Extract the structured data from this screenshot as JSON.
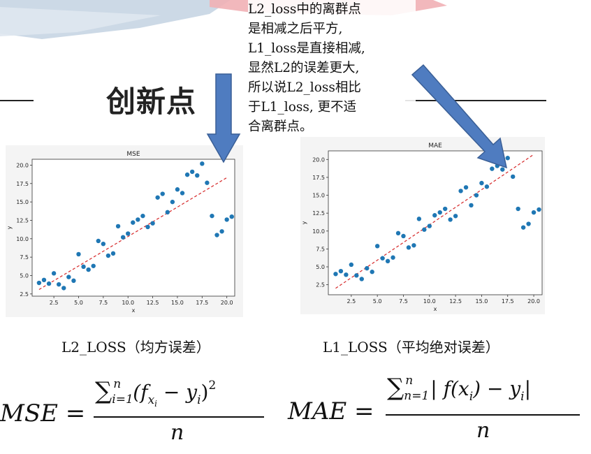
{
  "banner": {
    "colors": [
      "#c7d5e3",
      "#f1b0b5"
    ]
  },
  "heading": {
    "text": "创新点"
  },
  "note": {
    "lines": [
      "L2_loss中的离群点",
      "是相减之后平方,",
      "L1_loss是直接相减,",
      "显然L2的误差更大,",
      "所以说L2_loss相比",
      "于L1_loss, 更不适",
      "合离群点。"
    ]
  },
  "arrows": {
    "color": "#4f7cc0",
    "border": "#3a5f96"
  },
  "captions": {
    "left": "L2_LOSS（均方误差）",
    "right": "L1_LOSS（平均绝对误差）"
  },
  "formulas": {
    "mse": {
      "lhs": "MSE =",
      "sum": "∑",
      "sup": "n",
      "sub": "i=1",
      "term": "(f",
      "term_sub": "x",
      "term_subsub": "i",
      "minus": " − y",
      "y_sub": "i",
      "close": ")",
      "power": "2",
      "den": "n"
    },
    "mae": {
      "lhs": "MAE =",
      "sum": "∑",
      "sup": "n",
      "sub": "n=1",
      "term": "| f(x",
      "term_sub": "i",
      "minus": ") − y",
      "y_sub": "i",
      "close": "|",
      "den": "n"
    }
  },
  "chart_data": [
    {
      "type": "scatter",
      "title": "MSE",
      "xlabel": "x",
      "ylabel": "y",
      "xlim": [
        0.3,
        20.8
      ],
      "ylim": [
        2.2,
        20.8
      ],
      "xticks": [
        "2.5",
        "5.0",
        "7.5",
        "10.0",
        "12.5",
        "15.0",
        "17.5",
        "20.0"
      ],
      "xtick_values": [
        2.5,
        5.0,
        7.5,
        10.0,
        12.5,
        15.0,
        17.5,
        20.0
      ],
      "yticks": [
        "2.5",
        "5.0",
        "7.5",
        "10.0",
        "12.5",
        "15.0",
        "17.5",
        "20.0"
      ],
      "ytick_values": [
        2.5,
        5.0,
        7.5,
        10.0,
        12.5,
        15.0,
        17.5,
        20.0
      ],
      "points": [
        [
          1.0,
          4.0
        ],
        [
          1.5,
          4.4
        ],
        [
          2.0,
          3.9
        ],
        [
          2.5,
          5.3
        ],
        [
          3.0,
          3.8
        ],
        [
          3.5,
          3.3
        ],
        [
          4.0,
          4.8
        ],
        [
          4.5,
          4.3
        ],
        [
          5.0,
          7.9
        ],
        [
          5.5,
          6.2
        ],
        [
          6.0,
          5.8
        ],
        [
          6.5,
          6.3
        ],
        [
          7.0,
          9.7
        ],
        [
          7.5,
          9.3
        ],
        [
          8.0,
          7.7
        ],
        [
          8.5,
          8.0
        ],
        [
          9.0,
          11.7
        ],
        [
          9.5,
          10.2
        ],
        [
          10.0,
          10.7
        ],
        [
          10.5,
          12.2
        ],
        [
          11.0,
          12.6
        ],
        [
          11.5,
          13.1
        ],
        [
          12.0,
          11.6
        ],
        [
          12.5,
          12.1
        ],
        [
          13.0,
          15.6
        ],
        [
          13.5,
          16.1
        ],
        [
          14.0,
          13.6
        ],
        [
          14.5,
          15.0
        ],
        [
          15.0,
          16.7
        ],
        [
          15.5,
          16.2
        ],
        [
          16.0,
          18.7
        ],
        [
          16.5,
          19.1
        ],
        [
          17.0,
          18.6
        ],
        [
          17.5,
          20.2
        ],
        [
          18.0,
          17.6
        ],
        [
          18.5,
          13.1
        ],
        [
          19.0,
          10.5
        ],
        [
          19.5,
          11.0
        ],
        [
          20.0,
          12.6
        ],
        [
          20.5,
          13.0
        ]
      ],
      "fit_line": [
        [
          1.0,
          3.1
        ],
        [
          20.0,
          18.3
        ]
      ],
      "point_color": "#1f77b4",
      "line_color": "#d62728"
    },
    {
      "type": "scatter",
      "title": "MAE",
      "xlabel": "x",
      "ylabel": "y",
      "xlim": [
        0.3,
        20.8
      ],
      "ylim": [
        1.1,
        21.2
      ],
      "xticks": [
        "2.5",
        "5.0",
        "7.5",
        "10.0",
        "12.5",
        "15.0",
        "17.5",
        "20.0"
      ],
      "xtick_values": [
        2.5,
        5.0,
        7.5,
        10.0,
        12.5,
        15.0,
        17.5,
        20.0
      ],
      "yticks": [
        "2.5",
        "5.0",
        "7.5",
        "10.0",
        "12.5",
        "15.0",
        "17.5",
        "20.0"
      ],
      "ytick_values": [
        2.5,
        5.0,
        7.5,
        10.0,
        12.5,
        15.0,
        17.5,
        20.0
      ],
      "points": [
        [
          1.0,
          4.0
        ],
        [
          1.5,
          4.4
        ],
        [
          2.0,
          3.9
        ],
        [
          2.5,
          5.3
        ],
        [
          3.0,
          3.8
        ],
        [
          3.5,
          3.3
        ],
        [
          4.0,
          4.8
        ],
        [
          4.5,
          4.3
        ],
        [
          5.0,
          7.9
        ],
        [
          5.5,
          6.2
        ],
        [
          6.0,
          5.8
        ],
        [
          6.5,
          6.3
        ],
        [
          7.0,
          9.7
        ],
        [
          7.5,
          9.3
        ],
        [
          8.0,
          7.7
        ],
        [
          8.5,
          8.0
        ],
        [
          9.0,
          11.7
        ],
        [
          9.5,
          10.2
        ],
        [
          10.0,
          10.7
        ],
        [
          10.5,
          12.2
        ],
        [
          11.0,
          12.6
        ],
        [
          11.5,
          13.1
        ],
        [
          12.0,
          11.6
        ],
        [
          12.5,
          12.1
        ],
        [
          13.0,
          15.6
        ],
        [
          13.5,
          16.1
        ],
        [
          14.0,
          13.6
        ],
        [
          14.5,
          15.0
        ],
        [
          15.0,
          16.7
        ],
        [
          15.5,
          16.2
        ],
        [
          16.0,
          18.7
        ],
        [
          16.5,
          19.1
        ],
        [
          17.0,
          18.6
        ],
        [
          17.5,
          20.2
        ],
        [
          18.0,
          17.6
        ],
        [
          18.5,
          13.1
        ],
        [
          19.0,
          10.5
        ],
        [
          19.5,
          11.0
        ],
        [
          20.0,
          12.6
        ],
        [
          20.5,
          13.0
        ]
      ],
      "fit_line": [
        [
          1.0,
          2.0
        ],
        [
          20.0,
          20.7
        ]
      ],
      "point_color": "#1f77b4",
      "line_color": "#d62728"
    }
  ]
}
